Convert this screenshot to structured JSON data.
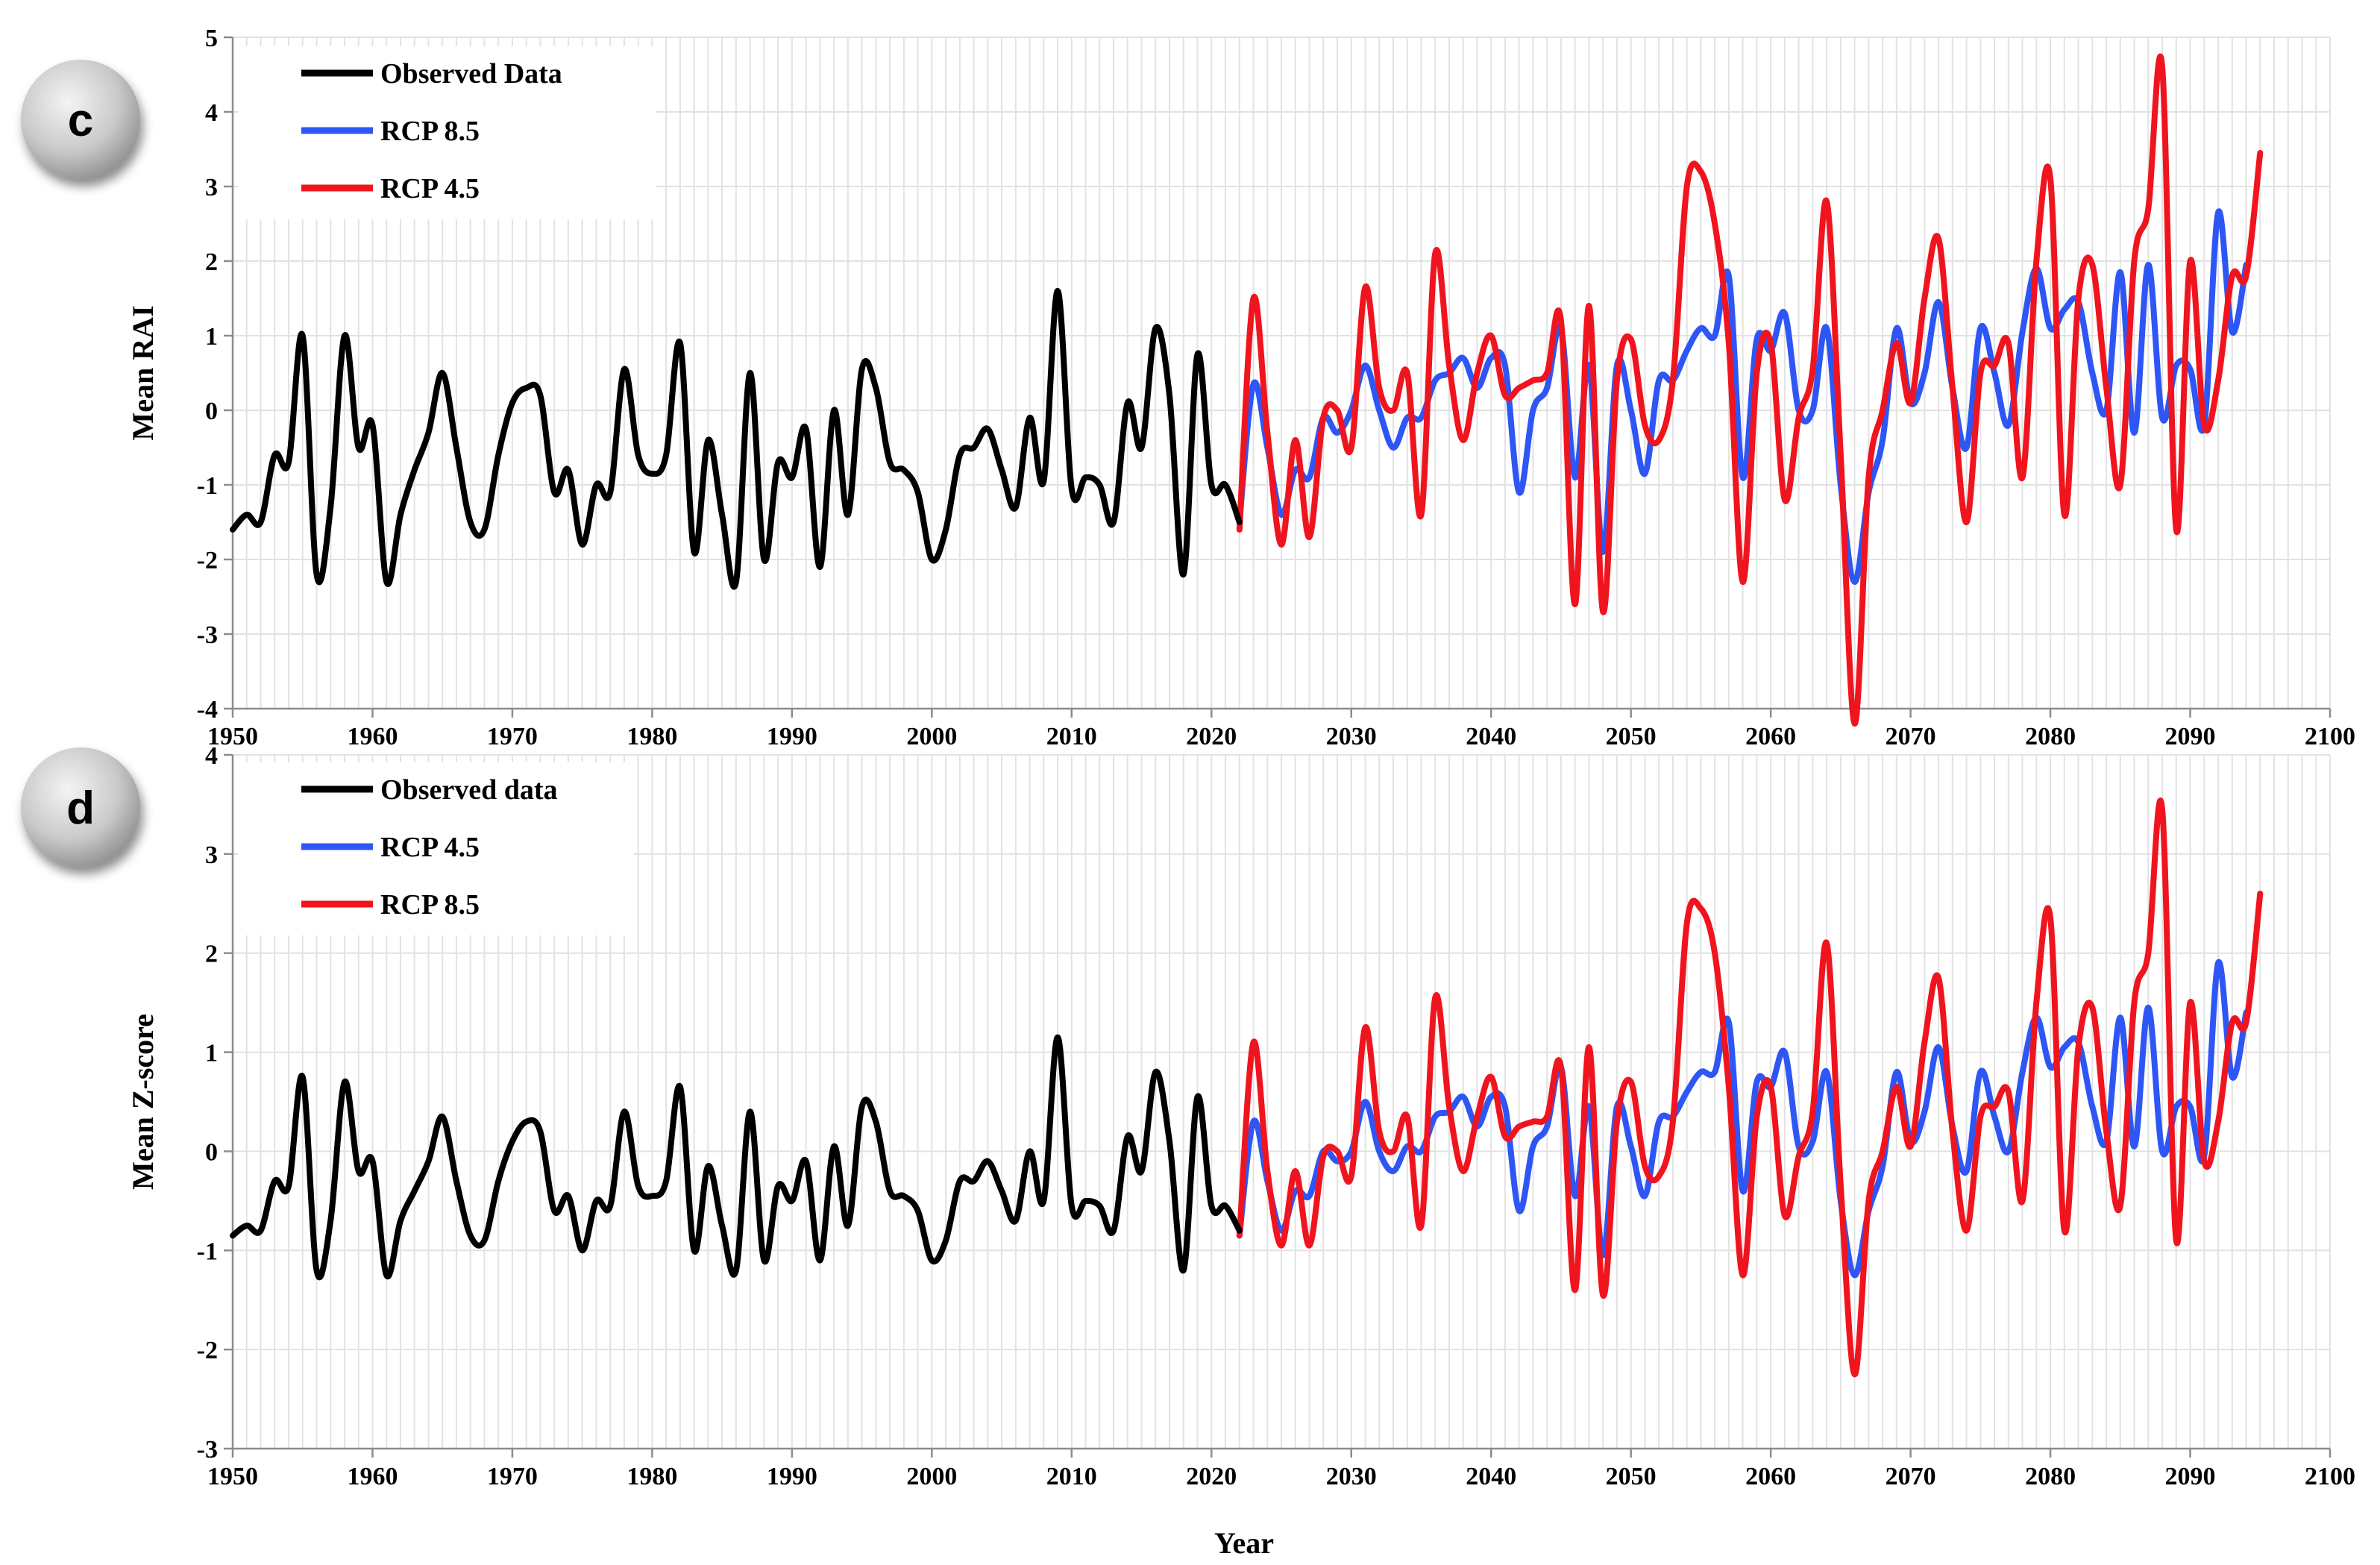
{
  "chart_data": [
    {
      "panel_label": "c",
      "type": "line",
      "ylabel": "Mean RAI",
      "xlabel": "",
      "xlim": [
        1950,
        2100
      ],
      "ylim": [
        -4,
        5
      ],
      "x_ticks": [
        "1950",
        "1960",
        "1970",
        "1980",
        "1990",
        "2000",
        "2010",
        "2020",
        "2030",
        "2040",
        "2050",
        "2060",
        "2070",
        "2080",
        "2090",
        "2100"
      ],
      "y_ticks": [
        "-4",
        "-3",
        "-2",
        "-1",
        "0",
        "1",
        "2",
        "3",
        "4",
        "5"
      ],
      "legend": [
        "Observed Data",
        "RCP 8.5",
        "RCP 4.5"
      ],
      "series": [
        {
          "name": "Observed Data",
          "color": "#000000",
          "x_start": 1950,
          "values": [
            -1.6,
            -1.4,
            -1.5,
            -0.6,
            -0.7,
            1.0,
            -2.2,
            -1.3,
            1.0,
            -0.5,
            -0.2,
            -2.3,
            -1.4,
            -0.8,
            -0.3,
            0.5,
            -0.5,
            -1.5,
            -1.6,
            -0.6,
            0.1,
            0.3,
            0.2,
            -1.1,
            -0.8,
            -1.8,
            -1.0,
            -1.1,
            0.55,
            -0.6,
            -0.85,
            -0.6,
            0.9,
            -1.9,
            -0.4,
            -1.4,
            -2.3,
            0.5,
            -2.0,
            -0.7,
            -0.9,
            -0.25,
            -2.1,
            0.0,
            -1.4,
            0.55,
            0.3,
            -0.7,
            -0.8,
            -1.1,
            -2.0,
            -1.6,
            -0.6,
            -0.5,
            -0.25,
            -0.8,
            -1.3,
            -0.1,
            -0.95,
            1.6,
            -1.05,
            -0.9,
            -1.0,
            -1.5,
            0.1,
            -0.5,
            1.1,
            0.2,
            -2.2,
            0.75,
            -1.0,
            -1.0,
            -1.5
          ]
        },
        {
          "name": "RCP 8.5",
          "color": "#2e56f5",
          "x_start": 2022,
          "values": [
            -1.5,
            0.35,
            -0.5,
            -1.4,
            -0.8,
            -0.9,
            -0.1,
            -0.3,
            0.0,
            0.6,
            0.0,
            -0.5,
            -0.1,
            -0.1,
            0.4,
            0.5,
            0.7,
            0.3,
            0.7,
            0.6,
            -1.1,
            0.0,
            0.3,
            1.1,
            -0.9,
            0.6,
            -1.9,
            0.6,
            0.0,
            -0.85,
            0.4,
            0.4,
            0.8,
            1.1,
            1.0,
            1.8,
            -0.9,
            0.95,
            0.8,
            1.3,
            0.0,
            0.0,
            1.1,
            -1.0,
            -2.3,
            -1.1,
            -0.4,
            1.1,
            0.1,
            0.5,
            1.45,
            0.3,
            -0.5,
            1.1,
            0.5,
            -0.2,
            1.05,
            1.9,
            1.1,
            1.35,
            1.45,
            0.5,
            0.0,
            1.85,
            -0.3,
            1.95,
            -0.1,
            0.6,
            0.55,
            -0.2,
            2.65,
            1.05,
            1.95
          ]
        },
        {
          "name": "RCP 4.5",
          "color": "#f0141e",
          "x_start": 2022,
          "values": [
            -1.6,
            1.5,
            -0.3,
            -1.8,
            -0.4,
            -1.7,
            -0.1,
            0.0,
            -0.5,
            1.65,
            0.3,
            0.0,
            0.5,
            -1.4,
            2.1,
            0.6,
            -0.4,
            0.5,
            1.0,
            0.2,
            0.3,
            0.4,
            0.5,
            1.2,
            -2.6,
            1.4,
            -2.7,
            0.4,
            0.95,
            -0.2,
            -0.4,
            0.4,
            3.0,
            3.2,
            2.5,
            0.9,
            -2.3,
            0.5,
            0.9,
            -1.2,
            -0.1,
            0.55,
            2.8,
            -0.6,
            -4.2,
            -0.9,
            0.0,
            0.9,
            0.1,
            1.5,
            2.3,
            0.3,
            -1.5,
            0.5,
            0.6,
            0.9,
            -0.9,
            2.0,
            3.1,
            -1.4,
            1.5,
            1.95,
            0.3,
            -1.0,
            2.0,
            2.7,
            4.6,
            -1.6,
            2.0,
            -0.2,
            0.4,
            1.8,
            1.8,
            3.45
          ]
        }
      ]
    },
    {
      "panel_label": "d",
      "type": "line",
      "ylabel": "Mean Z-score",
      "xlabel": "Year",
      "xlim": [
        1950,
        2100
      ],
      "ylim": [
        -3,
        4
      ],
      "x_ticks": [
        "1950",
        "1960",
        "1970",
        "1980",
        "1990",
        "2000",
        "2010",
        "2020",
        "2030",
        "2040",
        "2050",
        "2060",
        "2070",
        "2080",
        "2090",
        "2100"
      ],
      "y_ticks": [
        "-3",
        "-2",
        "-1",
        "0",
        "1",
        "2",
        "3",
        "4"
      ],
      "legend": [
        "Observed data",
        "RCP 4.5",
        "RCP 8.5"
      ],
      "series": [
        {
          "name": "Observed data",
          "color": "#000000",
          "x_start": 1950,
          "values": [
            -0.85,
            -0.75,
            -0.8,
            -0.3,
            -0.35,
            0.75,
            -1.2,
            -0.7,
            0.7,
            -0.2,
            -0.1,
            -1.25,
            -0.7,
            -0.4,
            -0.1,
            0.35,
            -0.3,
            -0.85,
            -0.9,
            -0.3,
            0.1,
            0.3,
            0.2,
            -0.6,
            -0.45,
            -1.0,
            -0.5,
            -0.55,
            0.4,
            -0.35,
            -0.45,
            -0.3,
            0.65,
            -1.0,
            -0.15,
            -0.75,
            -1.2,
            0.4,
            -1.1,
            -0.35,
            -0.5,
            -0.1,
            -1.1,
            0.05,
            -0.75,
            0.45,
            0.3,
            -0.4,
            -0.45,
            -0.6,
            -1.1,
            -0.9,
            -0.3,
            -0.3,
            -0.1,
            -0.4,
            -0.7,
            0.0,
            -0.5,
            1.15,
            -0.55,
            -0.5,
            -0.55,
            -0.8,
            0.15,
            -0.2,
            0.8,
            0.1,
            -1.2,
            0.55,
            -0.55,
            -0.55,
            -0.8
          ]
        },
        {
          "name": "RCP 4.5",
          "color": "#2e56f5",
          "x_start": 2022,
          "values": [
            -0.85,
            0.3,
            -0.3,
            -0.8,
            -0.4,
            -0.45,
            0.0,
            -0.1,
            0.0,
            0.5,
            0.0,
            -0.2,
            0.05,
            0.0,
            0.35,
            0.4,
            0.55,
            0.25,
            0.55,
            0.45,
            -0.6,
            0.05,
            0.25,
            0.85,
            -0.45,
            0.45,
            -1.05,
            0.45,
            0.05,
            -0.45,
            0.3,
            0.35,
            0.6,
            0.8,
            0.8,
            1.3,
            -0.4,
            0.7,
            0.65,
            1.0,
            0.05,
            0.1,
            0.8,
            -0.5,
            -1.25,
            -0.6,
            -0.15,
            0.8,
            0.1,
            0.4,
            1.05,
            0.25,
            -0.2,
            0.8,
            0.35,
            0.0,
            0.8,
            1.35,
            0.85,
            1.05,
            1.1,
            0.45,
            0.1,
            1.35,
            0.05,
            1.45,
            0.0,
            0.45,
            0.45,
            -0.05,
            1.9,
            0.75,
            1.4
          ]
        },
        {
          "name": "RCP 8.5",
          "color": "#f0141e",
          "x_start": 2022,
          "values": [
            -0.85,
            1.1,
            -0.2,
            -0.95,
            -0.2,
            -0.95,
            -0.05,
            0.0,
            -0.25,
            1.25,
            0.2,
            0.0,
            0.35,
            -0.75,
            1.55,
            0.45,
            -0.2,
            0.35,
            0.75,
            0.15,
            0.25,
            0.3,
            0.35,
            0.85,
            -1.4,
            1.05,
            -1.45,
            0.3,
            0.7,
            -0.15,
            -0.25,
            0.3,
            2.3,
            2.45,
            2.0,
            0.65,
            -1.25,
            0.35,
            0.65,
            -0.65,
            -0.05,
            0.4,
            2.1,
            -0.35,
            -2.25,
            -0.5,
            0.0,
            0.65,
            0.05,
            1.1,
            1.75,
            0.2,
            -0.8,
            0.35,
            0.45,
            0.6,
            -0.5,
            1.5,
            2.35,
            -0.8,
            1.05,
            1.45,
            0.2,
            -0.55,
            1.5,
            2.0,
            3.45,
            -0.9,
            1.5,
            -0.1,
            0.3,
            1.3,
            1.3,
            2.6
          ]
        }
      ]
    }
  ]
}
